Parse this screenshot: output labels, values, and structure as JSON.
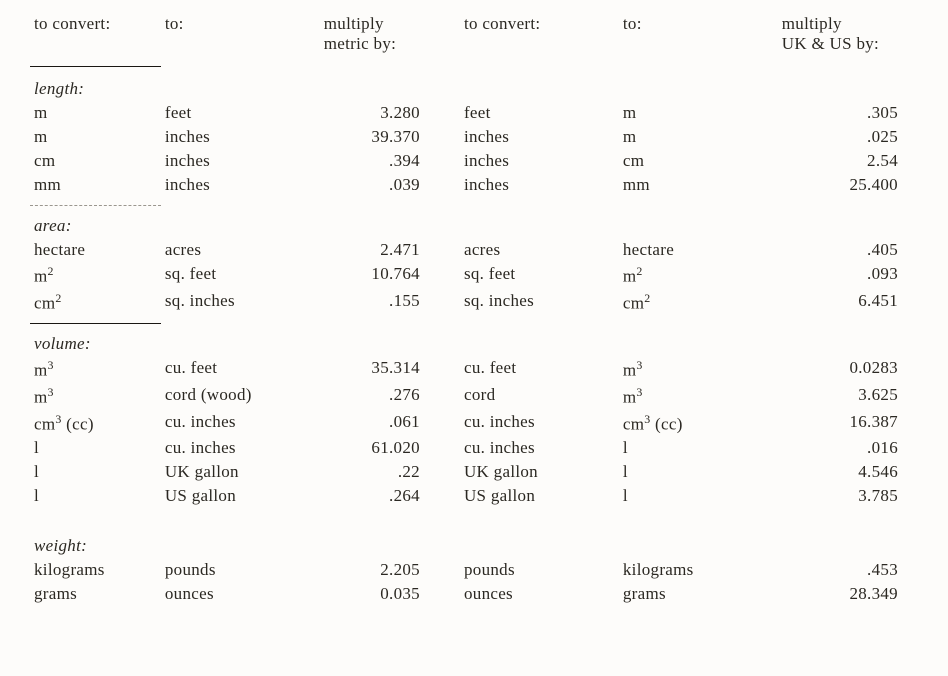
{
  "headers": {
    "h1": "to convert:",
    "h2": "to:",
    "h3a": "multiply",
    "h3b": "metric by:",
    "h4": "to convert:",
    "h5": "to:",
    "h6a": "multiply",
    "h6b": "UK & US by:"
  },
  "sections": {
    "length": "length:",
    "area": "area:",
    "volume": "volume:",
    "weight": "weight:"
  },
  "length": [
    {
      "c1": "m",
      "c2": "feet",
      "c3": "3.280",
      "c4": "feet",
      "c5": "m",
      "c6": ".305"
    },
    {
      "c1": "m",
      "c2": "inches",
      "c3": "39.370",
      "c4": "inches",
      "c5": "m",
      "c6": ".025"
    },
    {
      "c1": "cm",
      "c2": "inches",
      "c3": ".394",
      "c4": "inches",
      "c5": "cm",
      "c6": "2.54"
    },
    {
      "c1": "mm",
      "c2": "inches",
      "c3": ".039",
      "c4": "inches",
      "c5": "mm",
      "c6": "25.400"
    }
  ],
  "area": [
    {
      "c1": "hectare",
      "c2": "acres",
      "c3": "2.471",
      "c4": "acres",
      "c5": "hectare",
      "c6": ".405"
    },
    {
      "c1": "m²",
      "c2": "sq. feet",
      "c3": "10.764",
      "c4": "sq. feet",
      "c5": "m²",
      "c6": ".093"
    },
    {
      "c1": "cm²",
      "c2": "sq. inches",
      "c3": ".155",
      "c4": "sq. inches",
      "c5": "cm²",
      "c6": "6.451"
    }
  ],
  "volume": [
    {
      "c1": "m³",
      "c2": "cu. feet",
      "c3": "35.314",
      "c4": "cu. feet",
      "c5": "m³",
      "c6": "0.0283"
    },
    {
      "c1": "m³",
      "c2": "cord (wood)",
      "c3": ".276",
      "c4": "cord",
      "c5": "m³",
      "c6": "3.625"
    },
    {
      "c1": "cm³ (cc)",
      "c2": "cu. inches",
      "c3": ".061",
      "c4": "cu. inches",
      "c5": "cm³ (cc)",
      "c6": "16.387"
    },
    {
      "c1": "l",
      "c2": "cu. inches",
      "c3": "61.020",
      "c4": "cu. inches",
      "c5": "l",
      "c6": ".016"
    },
    {
      "c1": "l",
      "c2": "UK gallon",
      "c3": ".22",
      "c4": "UK gallon",
      "c5": "l",
      "c6": "4.546"
    },
    {
      "c1": "l",
      "c2": "US gallon",
      "c3": ".264",
      "c4": "US gallon",
      "c5": "l",
      "c6": "3.785"
    }
  ],
  "weight": [
    {
      "c1": "kilograms",
      "c2": "pounds",
      "c3": "2.205",
      "c4": "pounds",
      "c5": "kilograms",
      "c6": ".453"
    },
    {
      "c1": "grams",
      "c2": "ounces",
      "c3": "0.035",
      "c4": "ounces",
      "c5": "grams",
      "c6": "28.349"
    }
  ],
  "style": {
    "font_family": "serif",
    "font_size_pt": 13,
    "text_color": "#2b2822",
    "background_color": "#fdfcfa",
    "rule_color": "#1a1712",
    "dash_color": "#5a5448"
  }
}
